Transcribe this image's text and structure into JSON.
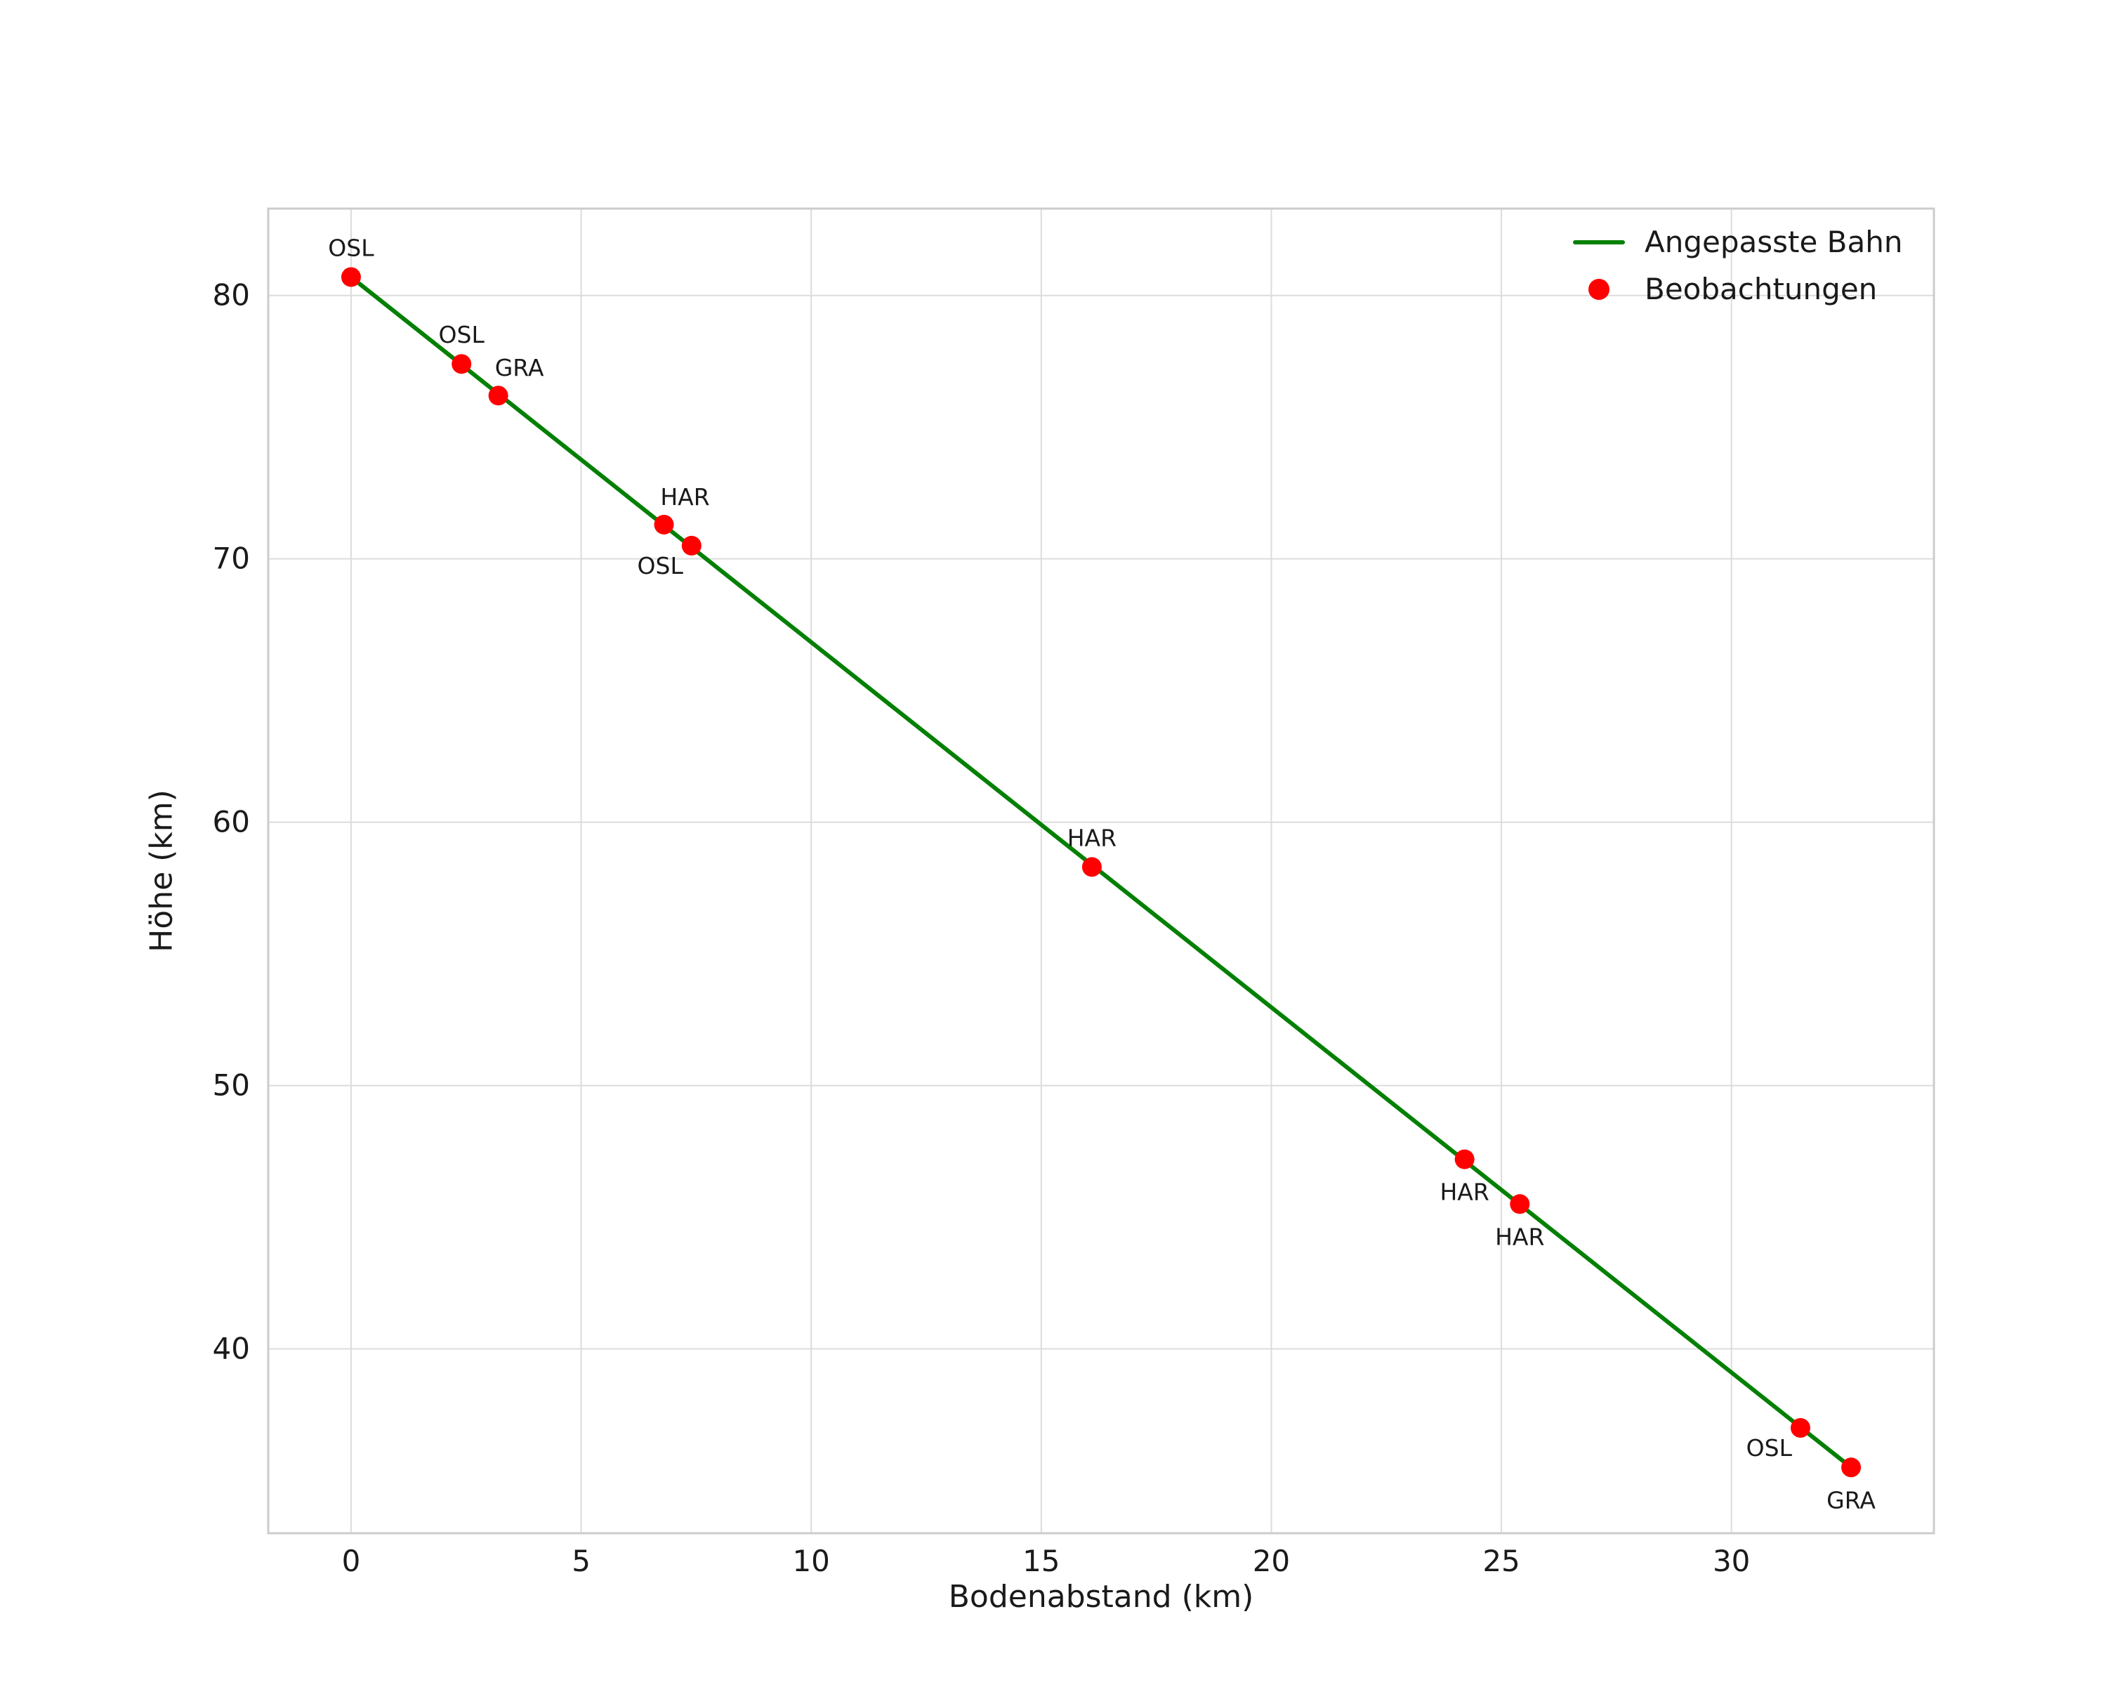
{
  "chart_data": {
    "type": "scatter",
    "title": "",
    "xlabel": "Bodenabstand (km)",
    "ylabel": "Höhe (km)",
    "xlim": [
      -1.8,
      34.4
    ],
    "ylim": [
      33.0,
      83.3
    ],
    "xticks": [
      0,
      5,
      10,
      15,
      20,
      25,
      30
    ],
    "yticks": [
      40,
      50,
      60,
      70,
      80
    ],
    "grid": true,
    "colors": {
      "line": "#038003",
      "marker": "#ff0000",
      "grid": "#dcdcdc",
      "border": "#cccccc",
      "text": "#1a1a1a"
    },
    "legend": {
      "position": "upper-right",
      "entries": [
        {
          "label": "Angepasste Bahn",
          "type": "line",
          "color": "#038003"
        },
        {
          "label": "Beobachtungen",
          "type": "marker",
          "color": "#ff0000"
        }
      ]
    },
    "line_series": {
      "name": "Angepasste Bahn",
      "color": "#038003",
      "x": [
        0.0,
        32.6
      ],
      "y": [
        80.7,
        35.5
      ]
    },
    "points_series_name": "Beobachtungen",
    "points": [
      {
        "label": "OSL",
        "x": 0.0,
        "y": 80.7,
        "label_pos": "above"
      },
      {
        "label": "OSL",
        "x": 2.4,
        "y": 77.4,
        "label_pos": "above"
      },
      {
        "label": "GRA",
        "x": 3.2,
        "y": 76.2,
        "label_pos": "above-right"
      },
      {
        "label": "HAR",
        "x": 6.8,
        "y": 71.3,
        "label_pos": "above-right"
      },
      {
        "label": "OSL",
        "x": 7.4,
        "y": 70.5,
        "label_pos": "below-left"
      },
      {
        "label": "HAR",
        "x": 16.1,
        "y": 58.3,
        "label_pos": "above"
      },
      {
        "label": "HAR",
        "x": 24.2,
        "y": 47.2,
        "label_pos": "below"
      },
      {
        "label": "HAR",
        "x": 25.4,
        "y": 45.5,
        "label_pos": "below"
      },
      {
        "label": "OSL",
        "x": 31.5,
        "y": 37.0,
        "label_pos": "below-left"
      },
      {
        "label": "GRA",
        "x": 32.6,
        "y": 35.5,
        "label_pos": "below"
      }
    ]
  }
}
